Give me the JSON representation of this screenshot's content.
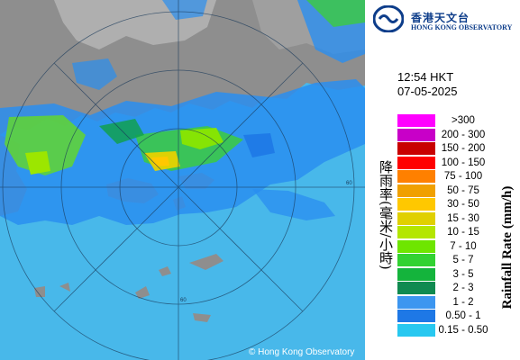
{
  "header": {
    "org_name_cn": "香港天文台",
    "org_name_en": "HONG KONG OBSERVATORY"
  },
  "timestamp": {
    "time": "12:54 HKT",
    "date": "07-05-2025"
  },
  "legend": {
    "title_cn": "降雨率(毫米/小時)",
    "title_en": "Rainfall Rate (mm/h)",
    "items": [
      {
        "label": ">300",
        "color": "#ff00ff"
      },
      {
        "label": "200 - 300",
        "color": "#c800c8"
      },
      {
        "label": "150 - 200",
        "color": "#c80000"
      },
      {
        "label": "100 - 150",
        "color": "#ff0000"
      },
      {
        "label": "75 - 100",
        "color": "#ff8000"
      },
      {
        "label": "50 - 75",
        "color": "#f0a000"
      },
      {
        "label": "30 - 50",
        "color": "#ffc800"
      },
      {
        "label": "15 - 30",
        "color": "#e0d000"
      },
      {
        "label": "10 - 15",
        "color": "#b4e600"
      },
      {
        "label": "7 - 10",
        "color": "#6ee600"
      },
      {
        "label": "5 - 7",
        "color": "#32d232"
      },
      {
        "label": "3 - 5",
        "color": "#14b43c"
      },
      {
        "label": "2 - 3",
        "color": "#108a50"
      },
      {
        "label": "1 - 2",
        "color": "#3c96f0"
      },
      {
        "label": "0.50 - 1",
        "color": "#1e78e6"
      },
      {
        "label": "0.15 - 0.50",
        "color": "#28c8f0"
      }
    ]
  },
  "map": {
    "range_ring_label": "60",
    "copyright": "© Hong Kong Observatory",
    "sea_color": "#48b8ea",
    "land_color": "#8e8e8e"
  }
}
